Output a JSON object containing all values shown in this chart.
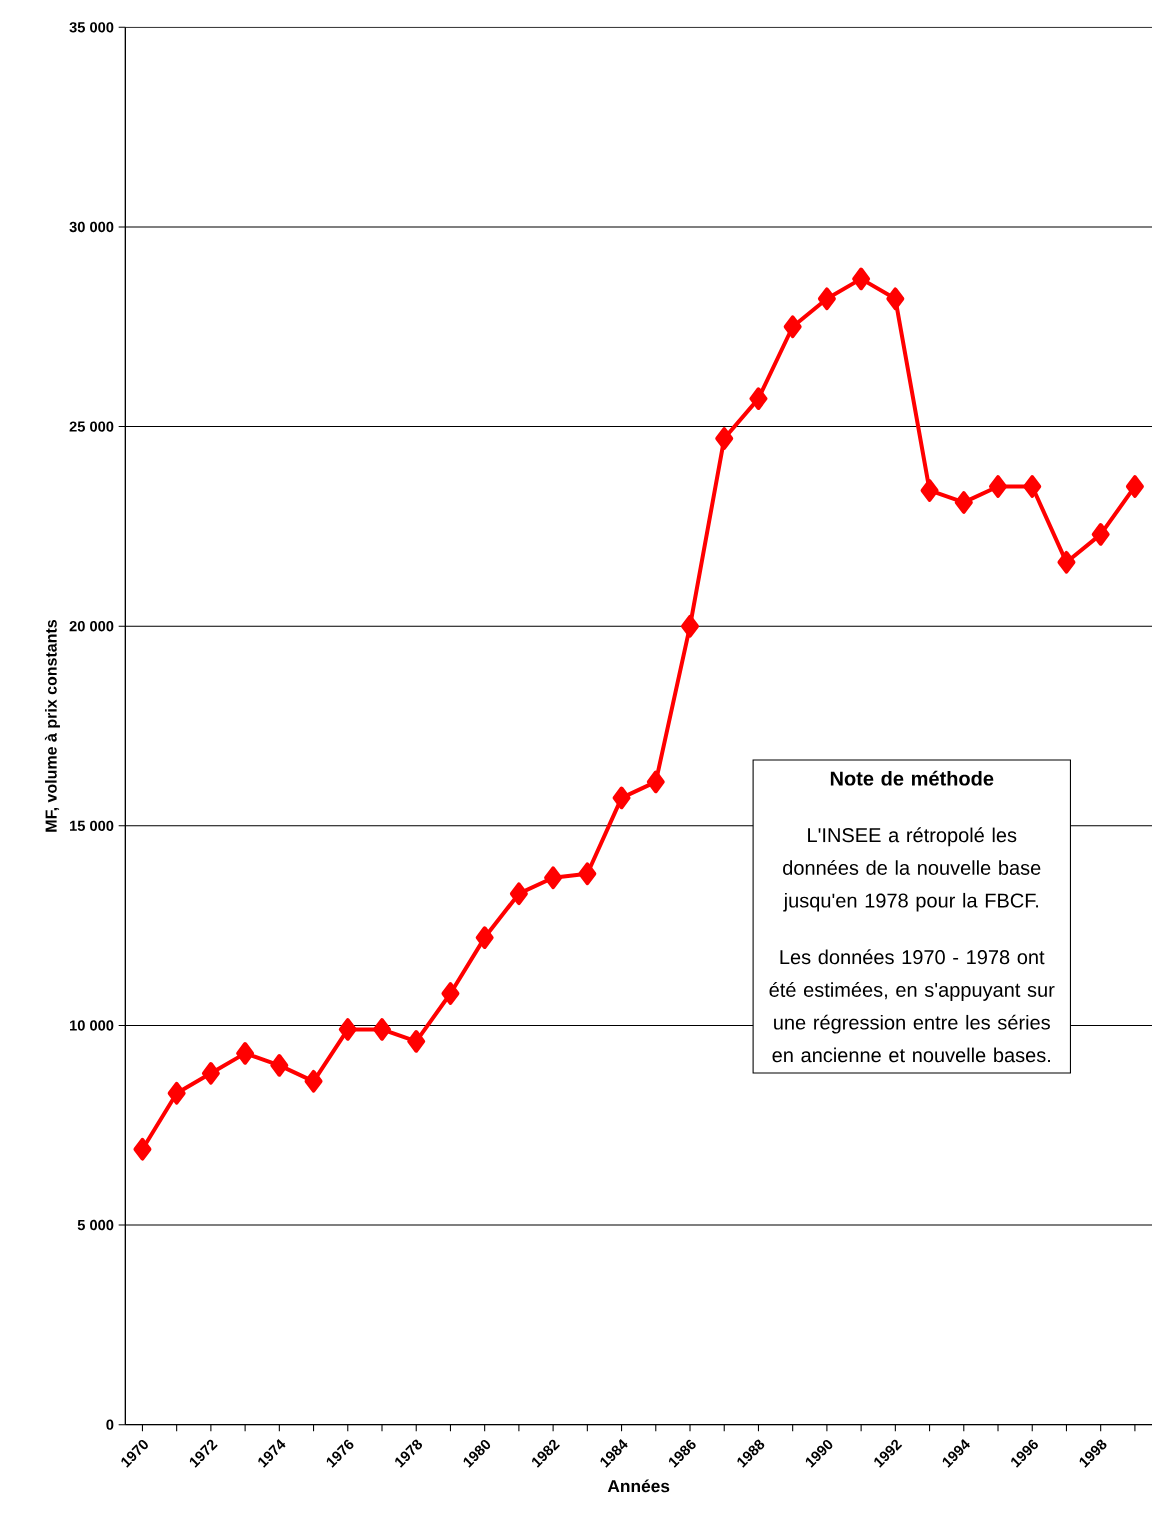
{
  "chart_data": {
    "type": "line",
    "xlabel": "Années",
    "ylabel": "MF, volume à prix constants",
    "categories": [
      "1970",
      null,
      "1972",
      null,
      "1974",
      null,
      "1976",
      null,
      "1978",
      null,
      "1980",
      null,
      "1982",
      null,
      "1984",
      null,
      "1986",
      null,
      "1988",
      null,
      "1990",
      null,
      "1992",
      null,
      "1994",
      null,
      "1996",
      null,
      "1998",
      null
    ],
    "series": [
      {
        "color": "#ff0000",
        "values": [
          6900,
          8300,
          8800,
          9300,
          9000,
          8600,
          9900,
          9900,
          9600,
          10800,
          12200,
          13300,
          13700,
          13800,
          15700,
          16100,
          20000,
          24700,
          25700,
          27500,
          28200,
          28700,
          28200,
          23400,
          23100,
          23500,
          23500,
          21600,
          22300,
          23500
        ]
      }
    ],
    "ylim": [
      0,
      35000
    ],
    "yticks": [
      0,
      {
        "value": 5000,
        "label": "5 000"
      },
      {
        "value": 10000,
        "label": "10 000"
      },
      {
        "value": 15000,
        "label": "15 000"
      },
      {
        "value": 20000,
        "label": "20 000"
      },
      {
        "value": 25000,
        "label": "25 000"
      },
      {
        "value": 30000,
        "label": "30 000"
      },
      {
        "value": 35000,
        "label": "35 000"
      }
    ],
    "grid": "y",
    "marker": "diamond",
    "line_style": "solid",
    "annotations": [
      "Note de méthode",
      "L'INSEE a rétropolé les données de la nouvelle base jusqu'en 1978 pour la FBCF.",
      "Les données 1970 - 1978 ont été estimées, en s'appuyant sur une régression entre les séries en ancienne et nouvelle bases."
    ]
  }
}
